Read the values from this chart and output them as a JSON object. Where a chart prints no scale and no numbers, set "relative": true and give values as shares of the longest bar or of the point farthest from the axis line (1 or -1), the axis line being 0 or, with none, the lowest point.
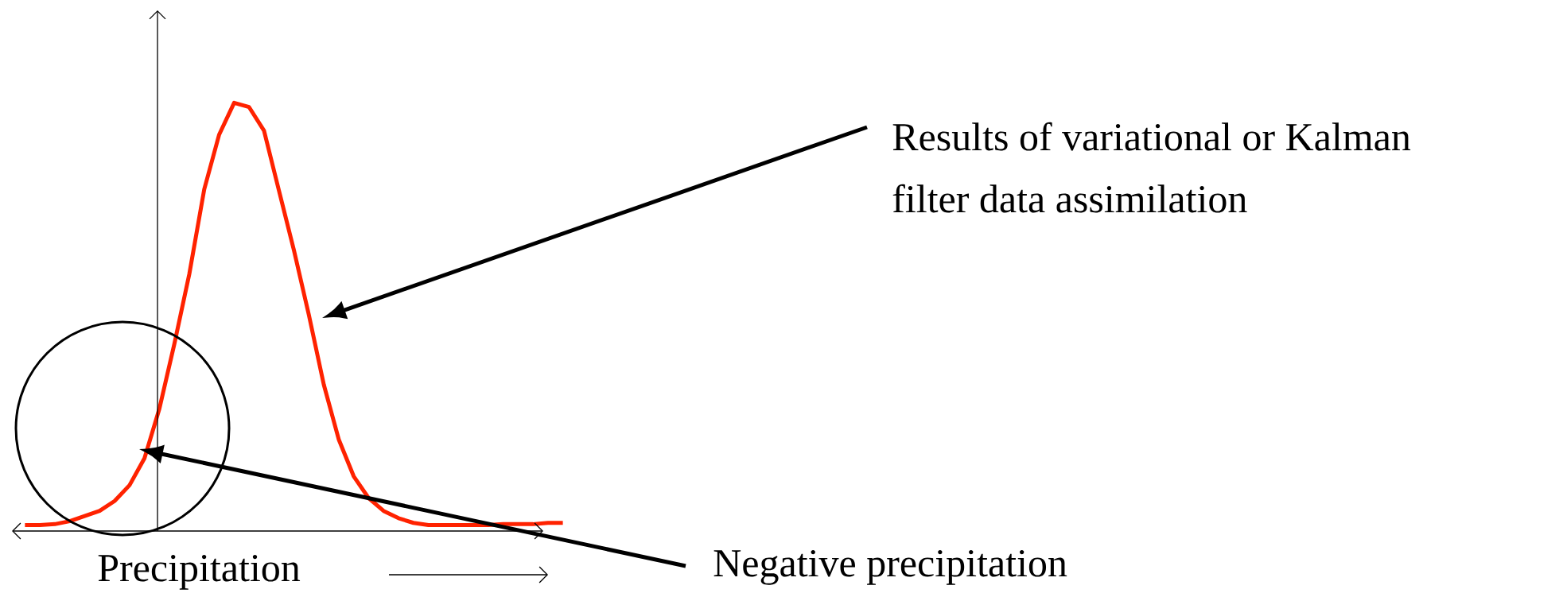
{
  "chart_data": {
    "type": "line",
    "relative": true,
    "xlabel": "Precipitation",
    "categories": [
      null,
      null,
      null,
      null,
      null,
      null,
      null,
      null,
      null,
      null,
      null,
      null,
      null,
      null,
      null,
      null,
      null,
      null,
      null,
      null,
      null,
      null,
      null,
      null,
      null,
      null,
      null,
      null,
      null,
      null,
      null,
      null,
      null,
      null,
      null,
      null,
      null
    ],
    "series": [
      {
        "color": "#ff2200",
        "values": [
          0.014,
          0.014,
          0.016,
          0.023,
          0.035,
          0.047,
          0.07,
          0.107,
          0.17,
          0.286,
          0.437,
          0.6,
          0.798,
          0.926,
          1.0,
          0.99,
          0.935,
          0.795,
          0.656,
          0.505,
          0.342,
          0.214,
          0.128,
          0.077,
          0.047,
          0.03,
          0.019,
          0.014,
          0.014,
          0.014,
          0.014,
          0.014,
          0.016,
          0.016,
          0.016,
          0.019,
          0.019
        ]
      }
    ],
    "annotations": [
      "Results of variational or Kalman",
      "filter data assimilation",
      "Negative precipitation"
    ]
  }
}
